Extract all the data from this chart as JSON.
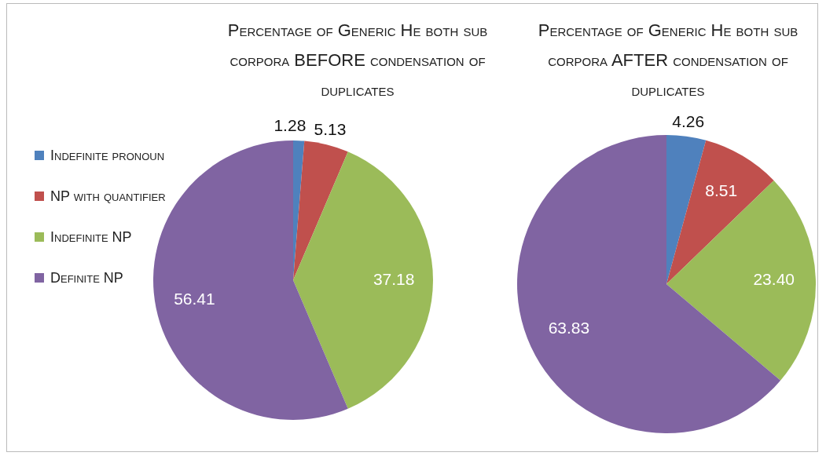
{
  "chart_data": [
    {
      "type": "pie",
      "title": "Percentage of Generic He both sub corpora BEFORE condensation of duplicates",
      "categories": [
        "Indefinite pronoun",
        "NP with quantifier",
        "Indefinite NP",
        "Definite NP"
      ],
      "values": [
        1.28,
        5.13,
        37.18,
        56.41
      ],
      "colors": [
        "#4f81bd",
        "#c0504d",
        "#9bbb59",
        "#8064a2"
      ],
      "data_labels": true,
      "legend": "left"
    },
    {
      "type": "pie",
      "title": "Percentage of Generic He both sub corpora AFTER condensation of duplicates",
      "categories": [
        null,
        null,
        null,
        null
      ],
      "values": [
        4.26,
        8.51,
        23.4,
        63.83
      ],
      "value_labels": [
        "4.26",
        "8.51",
        "23.40",
        "63.83"
      ],
      "colors": [
        "#4f81bd",
        "#c0504d",
        "#9bbb59",
        "#8064a2"
      ]
    }
  ]
}
